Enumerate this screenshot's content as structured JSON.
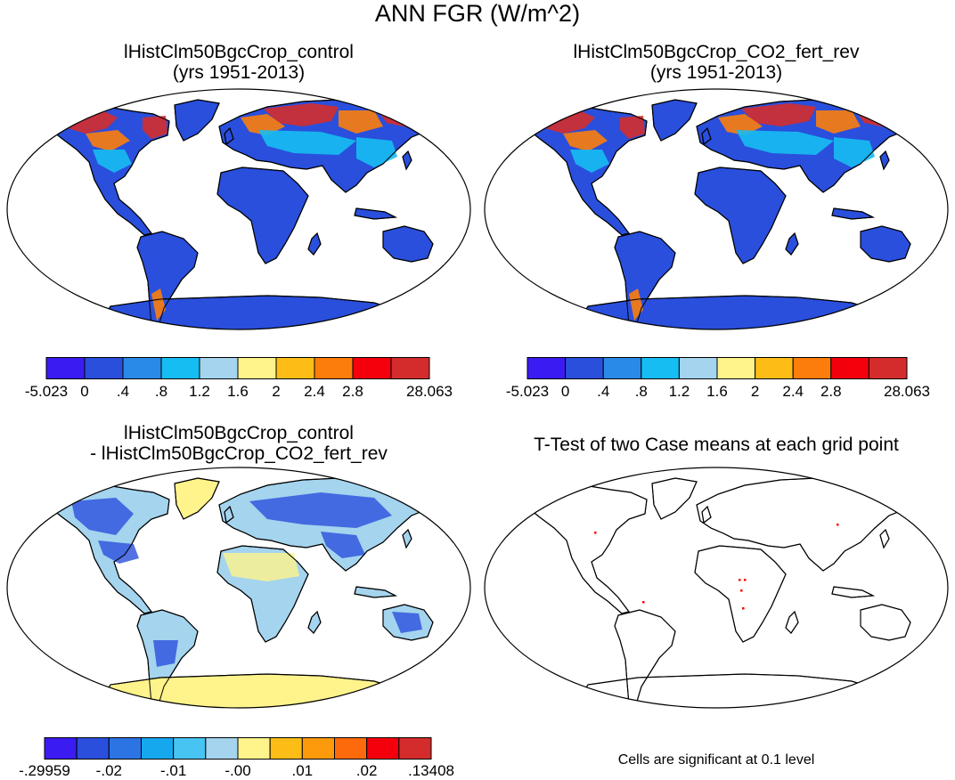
{
  "figure_title": "ANN FGR (W/m^2)",
  "panels": {
    "top_left": {
      "title_line1": "lHistClm50BgcCrop_control",
      "title_line2": "(yrs 1951-2013)"
    },
    "top_right": {
      "title_line1": "lHistClm50BgcCrop_CO2_fert_rev",
      "title_line2": "(yrs 1951-2013)"
    },
    "bottom_left": {
      "title_line1": "lHistClm50BgcCrop_control",
      "title_line2": "- lHistClm50BgcCrop_CO2_fert_rev"
    },
    "bottom_right": {
      "title_line1": "T-Test of two Case means at each grid point",
      "note": "Cells are significant at 0.1 level"
    }
  },
  "colorbar_abs": {
    "labels": [
      "-5.023",
      "0",
      ".4",
      ".8",
      "1.2",
      "1.6",
      "2",
      "2.4",
      "2.8",
      "28.063"
    ],
    "colors": [
      "#3a1cf2",
      "#2a4fdc",
      "#2a8ae8",
      "#16bdf2",
      "#a4d4ee",
      "#fff38c",
      "#fdbd16",
      "#fc7d0c",
      "#f4000c",
      "#d42c2c"
    ]
  },
  "colorbar_diff": {
    "labels": [
      "-.29959",
      "-.02",
      "-.01",
      "-.00",
      ".01",
      ".02",
      ".13408"
    ],
    "colors": [
      "#3a1cf2",
      "#2a4fdc",
      "#2c74e4",
      "#16a8ee",
      "#48c4f2",
      "#a4d4ee",
      "#fff38c",
      "#fdbd16",
      "#fc9a0c",
      "#fc6a0c",
      "#f4000c",
      "#d42c2c"
    ]
  },
  "map_colors": {
    "ocean": "#ffffff",
    "abs_land_base": "#2a4fdc",
    "abs_high": "#d42c2c",
    "abs_mid": "#fc7d0c",
    "abs_light": "#16bdf2",
    "diff_base": "#a4d4ee",
    "diff_neutral": "#fff38c",
    "diff_neg": "#2a4fdc",
    "significant_cell": "#ff0000"
  }
}
